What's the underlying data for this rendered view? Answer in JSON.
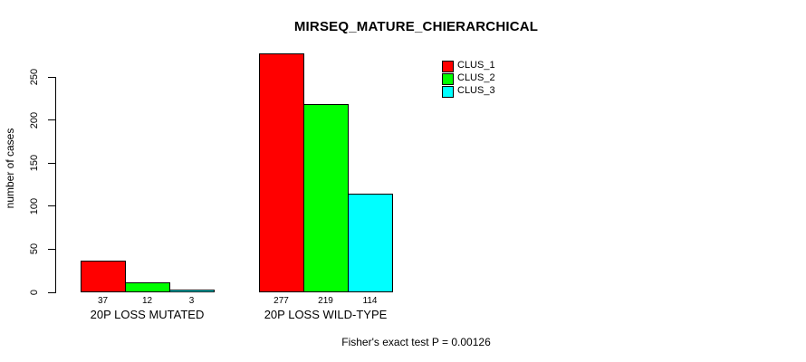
{
  "title": "MIRSEQ_MATURE_CHIERARCHICAL",
  "footer": "Fisher's exact test P = 0.00126",
  "colors": {
    "background": "#FFFFFF",
    "text": "#000000",
    "bar_border": "#000000",
    "clus_1": "#FF0000",
    "clus_2": "#00FF00",
    "clus_3": "#00FFFF"
  },
  "chart_data": {
    "type": "bar",
    "title": "MIRSEQ_MATURE_CHIERARCHICAL",
    "categories": [
      "20P LOSS MUTATED",
      "20P LOSS WILD-TYPE"
    ],
    "series": [
      {
        "name": "CLUS_1",
        "color": "#FF0000",
        "values": [
          37,
          277
        ]
      },
      {
        "name": "CLUS_2",
        "color": "#00FF00",
        "values": [
          12,
          219
        ]
      },
      {
        "name": "CLUS_3",
        "color": "#00FFFF",
        "values": [
          3,
          114
        ]
      }
    ],
    "bar_labels": [
      [
        37,
        12,
        3
      ],
      [
        277,
        219,
        114
      ]
    ],
    "xlabel": "",
    "ylabel": "number of cases",
    "ylim": [
      0,
      250
    ],
    "yticks": [
      0,
      50,
      100,
      150,
      200,
      250
    ],
    "grid": false,
    "legend_position": "top-right",
    "legend_entries": [
      "CLUS_1",
      "CLUS_2",
      "CLUS_3"
    ],
    "annotation": "Fisher's exact test P = 0.00126"
  }
}
